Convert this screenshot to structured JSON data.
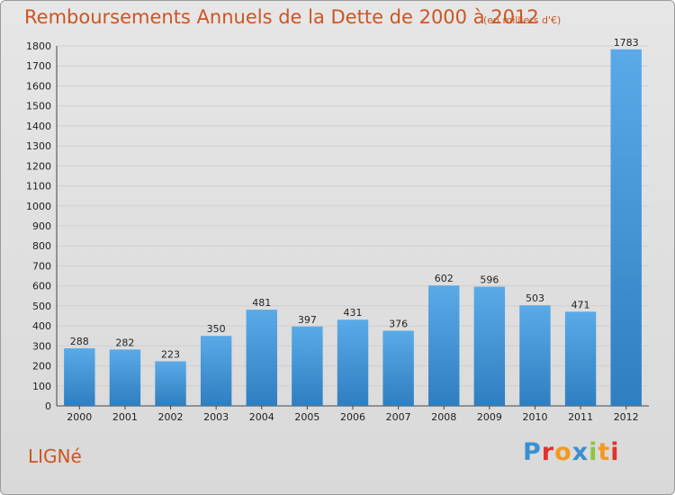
{
  "header": {
    "title": "Remboursements Annuels de la Dette de 2000 à 2012",
    "unit": "(en milliers d'€)"
  },
  "footer": {
    "commune": "LIGNé",
    "logo_letters": [
      {
        "ch": "P",
        "color": "#3a8fd0"
      },
      {
        "ch": "r",
        "color": "#e2312d"
      },
      {
        "ch": "o",
        "color": "#f39a1e"
      },
      {
        "ch": "x",
        "color": "#3a8fd0"
      },
      {
        "ch": "i",
        "color": "#8cc63f"
      },
      {
        "ch": "t",
        "color": "#f39a1e"
      },
      {
        "ch": "i",
        "color": "#e2312d"
      }
    ]
  },
  "colors": {
    "bar_light": "#5aaae8",
    "bar_dark": "#2f7ec0",
    "grid": "#cfcfcf",
    "text_accent": "#cc5522"
  },
  "chart_data": {
    "type": "bar",
    "title": "Remboursements Annuels de la Dette de 2000 à 2012",
    "subtitle": "(en milliers d'€)",
    "xlabel": "",
    "ylabel": "",
    "categories": [
      "2000",
      "2001",
      "2002",
      "2003",
      "2004",
      "2005",
      "2006",
      "2007",
      "2008",
      "2009",
      "2010",
      "2011",
      "2012"
    ],
    "values": [
      288,
      282,
      223,
      350,
      481,
      397,
      431,
      376,
      602,
      596,
      503,
      471,
      1783
    ],
    "ylim": [
      0,
      1800
    ],
    "yticks": [
      0,
      100,
      200,
      300,
      400,
      500,
      600,
      700,
      800,
      900,
      1000,
      1100,
      1200,
      1300,
      1400,
      1500,
      1600,
      1700,
      1800
    ],
    "grid": true,
    "legend": "none"
  }
}
